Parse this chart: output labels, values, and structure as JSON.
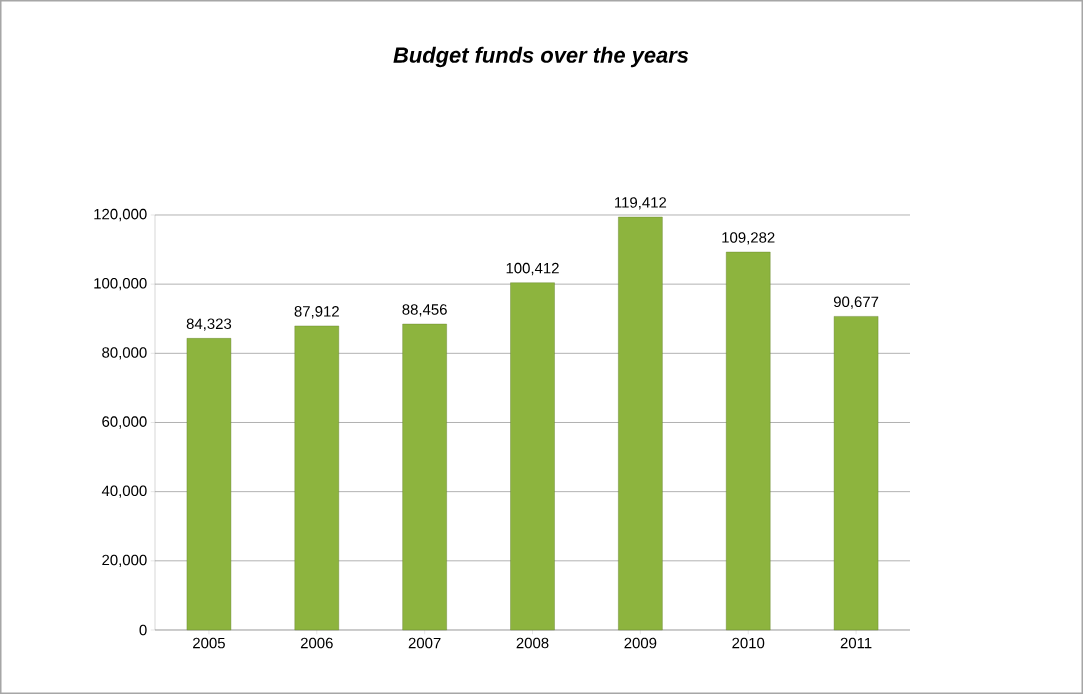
{
  "chart_data": {
    "type": "bar",
    "title": "Budget funds over the years",
    "categories": [
      "2005",
      "2006",
      "2007",
      "2008",
      "2009",
      "2010",
      "2011"
    ],
    "values": [
      84323,
      87912,
      88456,
      100412,
      119412,
      109282,
      90677
    ],
    "value_labels": [
      "84,323",
      "87,912",
      "88,456",
      "100,412",
      "119,412",
      "109,282",
      "90,677"
    ],
    "color": "#8db43e",
    "ylim": [
      0,
      120000
    ],
    "yticks": [
      0,
      {
        "value": 20000,
        "label": "20,000"
      },
      {
        "value": 40000,
        "label": "40,000"
      },
      {
        "value": 60000,
        "label": "60,000"
      },
      {
        "value": 80000,
        "label": "80,000"
      },
      {
        "value": 100000,
        "label": "100,000"
      },
      {
        "value": 120000,
        "label": "120,000"
      }
    ],
    "grid": "y"
  }
}
